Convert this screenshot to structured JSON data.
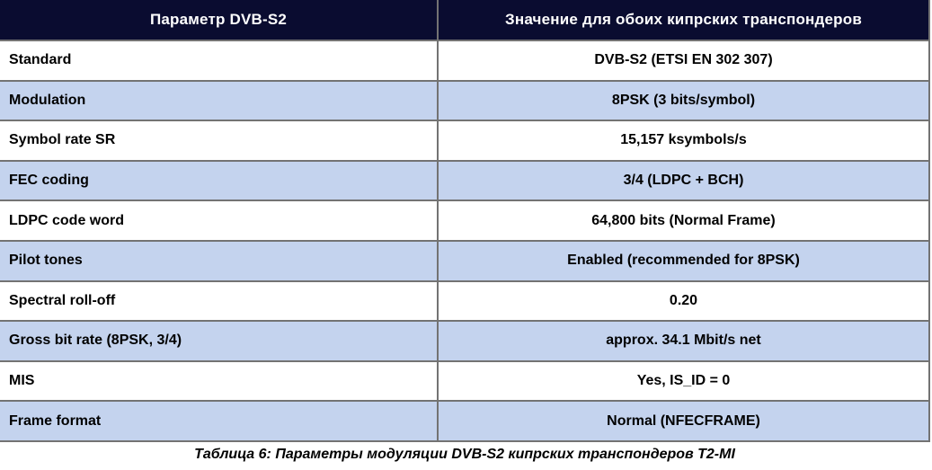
{
  "table": {
    "header": {
      "param_label": "Параметр DVB-S2",
      "value_label": "Значение для обоих кипрских транспондеров"
    },
    "rows": [
      {
        "param": "Standard",
        "value": "DVB-S2 (ETSI EN 302 307)"
      },
      {
        "param": "Modulation",
        "value": "8PSK (3 bits/symbol)"
      },
      {
        "param": "Symbol rate SR",
        "value": "15,157 ksymbols/s"
      },
      {
        "param": "FEC coding",
        "value": "3/4 (LDPC + BCH)"
      },
      {
        "param": "LDPC code word",
        "value": "64,800 bits (Normal Frame)"
      },
      {
        "param": "Pilot tones",
        "value": "Enabled (recommended for 8PSK)"
      },
      {
        "param": "Spectral roll-off",
        "value": "0.20"
      },
      {
        "param": "Gross bit rate (8PSK, 3/4)",
        "value": "approx. 34.1 Mbit/s net"
      },
      {
        "param": "MIS",
        "value": "Yes, IS_ID = 0"
      },
      {
        "param": "Frame format",
        "value": "Normal (NFECFRAME)"
      }
    ],
    "caption": "Таблица 6: Параметры модуляции DVB-S2 кипрских транспондеров T2-MI"
  },
  "colors": {
    "header_bg": "#0a0c30",
    "header_text": "#ffffff",
    "row_bg": "#ffffff",
    "row_alt_bg": "#c4d3ee",
    "border": "#737373",
    "body_text": "#000000"
  }
}
